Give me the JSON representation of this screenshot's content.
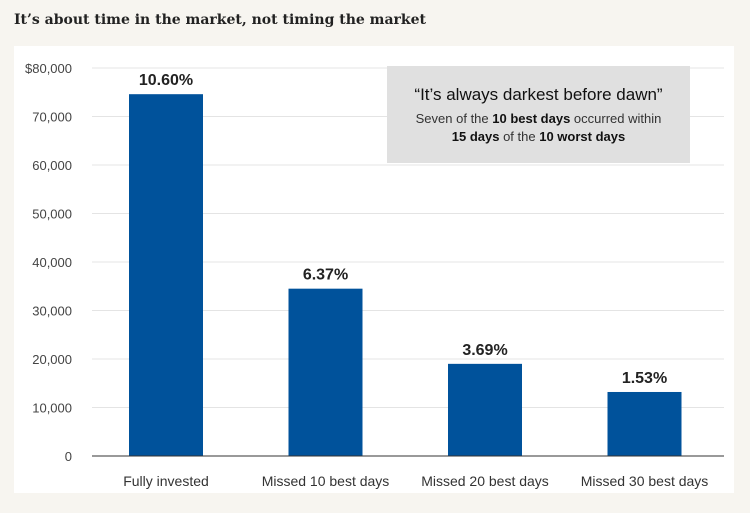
{
  "page": {
    "headline": "It’s about time in the market, not timing the market"
  },
  "colors": {
    "bar": "#00529b",
    "callout_bg": "#e0e0e0",
    "grid": "#e4e4e4",
    "axis": "#333333"
  },
  "callout": {
    "title": "“It’s always darkest before dawn”",
    "line1_a": "Seven of the ",
    "line1_b": "10 best days",
    "line1_c": " occurred within",
    "line2_a": "15 days",
    "line2_b": " of the ",
    "line2_c": "10 worst days"
  },
  "chart_data": {
    "type": "bar",
    "categories": [
      "Fully invested",
      "Missed 10 best days",
      "Missed 20 best days",
      "Missed 30 best days"
    ],
    "values": [
      74600,
      34500,
      19000,
      13200
    ],
    "data_labels": [
      "10.60%",
      "6.37%",
      "3.69%",
      "1.53%"
    ],
    "ylim": [
      0,
      80000
    ],
    "yticks": [
      0,
      10000,
      20000,
      30000,
      40000,
      50000,
      60000,
      70000,
      80000
    ],
    "ytick_labels": [
      "0",
      "10,000",
      "20,000",
      "30,000",
      "40,000",
      "50,000",
      "60,000",
      "70,000",
      "$80,000"
    ],
    "title": "",
    "xlabel": "",
    "ylabel": "",
    "grid": true,
    "legend": "none"
  }
}
